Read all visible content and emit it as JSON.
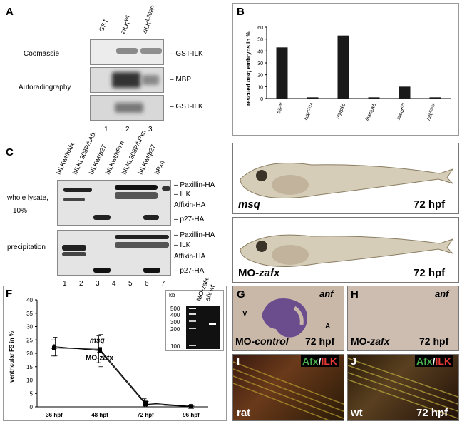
{
  "panels": {
    "A": {
      "label": "A",
      "lanes": [
        "GST",
        "zILK",
        "zILK"
      ],
      "lane_sup": [
        "",
        "wt",
        "L308P"
      ],
      "row_labels": [
        "Coomassie",
        "Autoradiography"
      ],
      "band_labels": [
        "GST-ILK",
        "MBP",
        "GST-ILK"
      ],
      "lane_numbers": [
        "1",
        "2",
        "3"
      ]
    },
    "B": {
      "label": "B",
      "ylabel": "rescued msq embryos in %",
      "ylabel_parts": [
        "rescued ",
        "msq",
        " embryos in %"
      ]
    },
    "C": {
      "label": "C",
      "lanes": [
        "hILK/hAfx",
        "hILK/hAfx",
        "hILK/p27",
        "hILK/hPxn",
        "hILK/hPxn",
        "hILK/p27",
        "hPxn"
      ],
      "lane_display": [
        "hILKwt/hAfx",
        "hILKL308P/hAfx",
        "hILKwt/p27",
        "hILKwt/hPxn",
        "hILKL308P/hPxn",
        "hILKwt/p27",
        "hPxn"
      ],
      "row_labels": [
        "whole lysate,",
        "10%",
        "precipitation"
      ],
      "band_labels_top": [
        "Paxillin-HA",
        "ILK",
        "Affixin-HA",
        "p27-HA"
      ],
      "band_labels_bottom": [
        "Paxillin-HA",
        "ILK",
        "Affixin-HA",
        "p27-HA"
      ],
      "lane_numbers": [
        "1",
        "2",
        "3",
        "4",
        "5",
        "6",
        "7"
      ]
    },
    "D": {
      "label": "D",
      "name": "msq",
      "time": "72 hpf"
    },
    "E": {
      "label": "E",
      "name_prefix": "MO-",
      "name_italic": "zafx",
      "time": "72 hpf"
    },
    "F": {
      "label": "F",
      "inset": {
        "kb": "kb",
        "ladder": [
          "500",
          "400",
          "300",
          "200",
          "100"
        ],
        "lanes": [
          "MO-zafx",
          "afx wt"
        ]
      }
    },
    "G": {
      "label": "G",
      "marker": "anf",
      "v": "V",
      "a": "A",
      "name_prefix": "MO-",
      "name_italic": "control",
      "time": "72 hpf"
    },
    "H": {
      "label": "H",
      "marker": "anf",
      "name_prefix": "MO-",
      "name_italic": "zafx",
      "time": "72 hpf"
    },
    "I": {
      "label": "I",
      "stain_a": "Afx",
      "slash": "/",
      "stain_b": "ILK",
      "name": "rat"
    },
    "J": {
      "label": "J",
      "stain_a": "Afx",
      "slash": "/",
      "stain_b": "ILK",
      "name": "wt",
      "time": "72 hpf"
    }
  },
  "colors": {
    "green": "#4caf50",
    "red": "#e53935",
    "bar": "#1a1a1a",
    "stain_purple": "#5a3a8a"
  },
  "chart_data": [
    {
      "type": "bar",
      "panel": "B",
      "categories": [
        "hilk",
        "hilk",
        "myrpkb",
        "inactpkb",
        "zvegf",
        "hilk"
      ],
      "category_sup": [
        "wt",
        "R211A",
        "",
        "",
        "121",
        "E359K"
      ],
      "values": [
        43,
        1,
        53,
        1,
        10,
        1
      ],
      "ylabel": "rescued msq embryos in %",
      "ylim": [
        0,
        60
      ],
      "yticks": [
        0,
        10,
        20,
        30,
        40,
        50,
        60
      ]
    },
    {
      "type": "line",
      "panel": "F",
      "x": [
        "36 hpf",
        "48 hpf",
        "72 hpf",
        "96 hpf"
      ],
      "series": [
        {
          "name": "msq",
          "values": [
            22,
            21.5,
            1.5,
            0.2
          ],
          "err": [
            3,
            5,
            1.5,
            0.3
          ]
        },
        {
          "name": "MO-zafx",
          "values": [
            22.5,
            21,
            1,
            0.1
          ],
          "err": [
            3.5,
            6,
            1,
            0.2
          ]
        }
      ],
      "ylabel": "ventricular FS in %",
      "ylim": [
        0,
        40
      ],
      "yticks": [
        0,
        5,
        10,
        15,
        20,
        25,
        30,
        35,
        40
      ]
    }
  ]
}
